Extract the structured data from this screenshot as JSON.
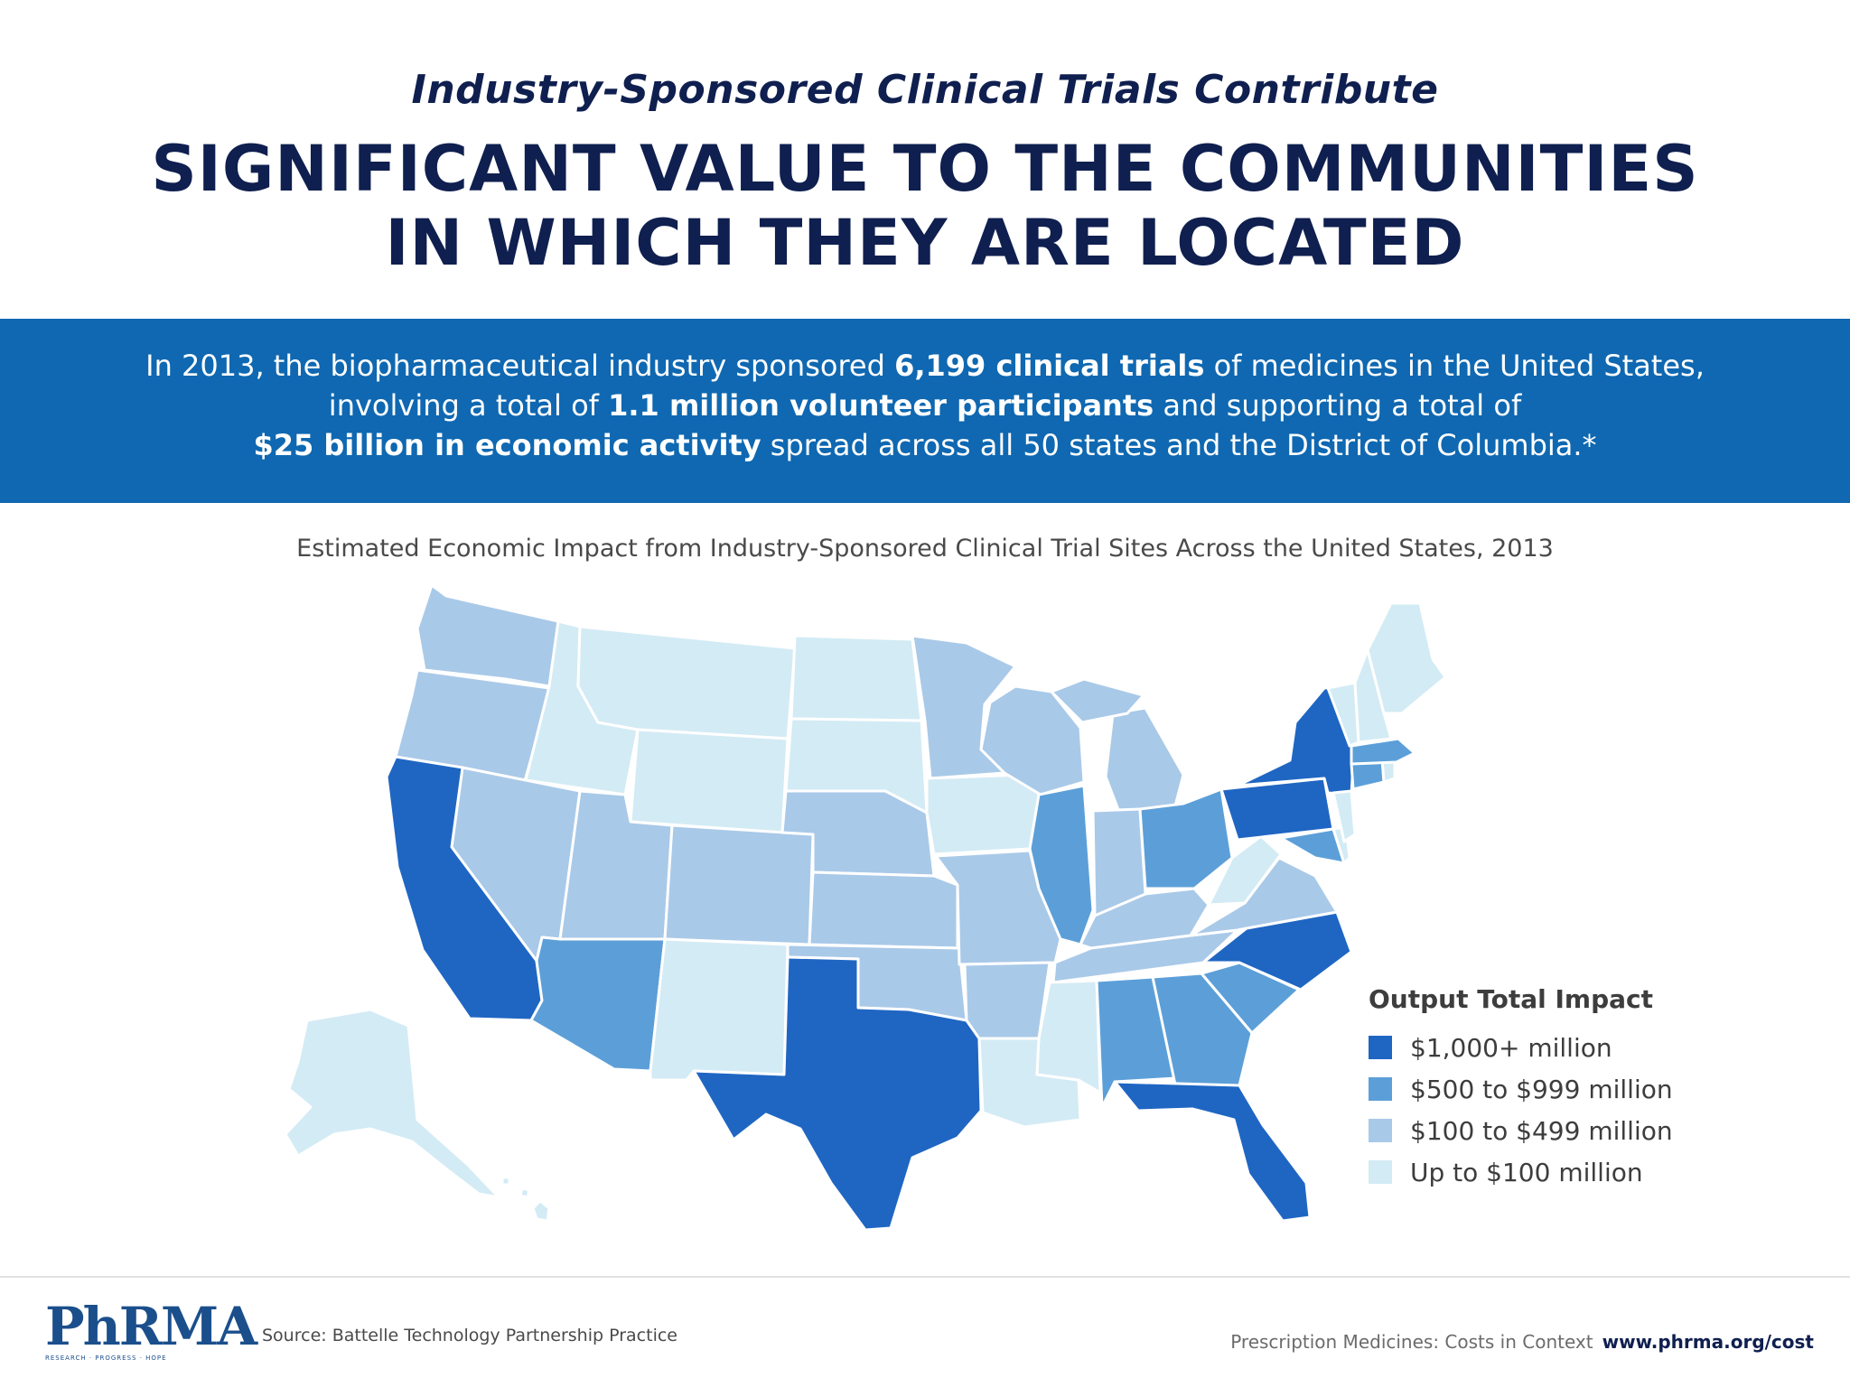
{
  "header": {
    "subtitle": "Industry-Sponsored Clinical Trials Contribute",
    "headline_line1": "SIGNIFICANT VALUE TO THE COMMUNITIES",
    "headline_line2": "IN WHICH THEY ARE LOCATED"
  },
  "banner": {
    "l1_a": "In 2013, the biopharmaceutical industry sponsored ",
    "l1_b": "6,199 clinical trials",
    "l1_c": " of medicines in the United States,",
    "l2_a": "involving a total of ",
    "l2_b": "1.1 million volunteer participants",
    "l2_c": " and supporting a total of",
    "l3_b": "$25 billion in economic activity",
    "l3_c": " spread across all 50 states and the District of Columbia.*"
  },
  "map": {
    "title": "Estimated Economic Impact from Industry-Sponsored Clinical Trial Sites Across the United States, 2013",
    "tiers": {
      "t1": "#1f66c3",
      "t2": "#5c9fd8",
      "t3": "#a9c9e8",
      "t4": "#d3ebf4"
    }
  },
  "legend": {
    "title": "Output Total Impact",
    "items": [
      {
        "label": "$1,000+ million",
        "color": "#1f66c3"
      },
      {
        "label": "$500 to $999 million",
        "color": "#5c9fd8"
      },
      {
        "label": "$100 to $499 million",
        "color": "#a9c9e8"
      },
      {
        "label": "Up to $100 million",
        "color": "#d3ebf4"
      }
    ]
  },
  "footer": {
    "logo": "PhRMA",
    "logo_tag": "RESEARCH · PROGRESS · HOPE",
    "source": "Source: Battelle Technology Partnership Practice",
    "context": "Prescription Medicines: Costs in Context",
    "url": "www.phrma.org/cost"
  }
}
